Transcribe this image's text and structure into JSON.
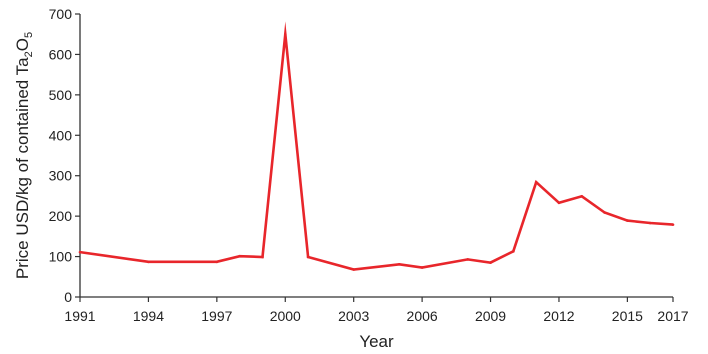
{
  "chart_data": {
    "type": "line",
    "title": "",
    "xlabel": "Year",
    "ylabel_parts": {
      "prefix": "Price USD/kg of contained Ta",
      "sub1": "2",
      "mid": "O",
      "sub2": "5"
    },
    "xlim": [
      1991,
      2017
    ],
    "ylim": [
      0,
      700
    ],
    "xticks": [
      1991,
      1994,
      1997,
      2000,
      2003,
      2006,
      2009,
      2012,
      2015,
      2017
    ],
    "yticks": [
      0,
      100,
      200,
      300,
      400,
      500,
      600,
      700
    ],
    "grid": false,
    "legend": "none",
    "line_color": "#e8262b",
    "series": [
      {
        "x": [
          1991,
          1994,
          1997,
          1998,
          1999,
          2000,
          2001,
          2003,
          2005,
          2006,
          2008,
          2009,
          2010,
          2011,
          2012,
          2013,
          2014,
          2015,
          2016,
          2017
        ],
        "values": [
          111,
          87,
          87,
          101,
          99,
          650,
          99,
          68,
          81,
          73,
          93,
          85,
          113,
          284,
          233,
          249,
          209,
          189,
          183,
          179
        ]
      }
    ]
  }
}
